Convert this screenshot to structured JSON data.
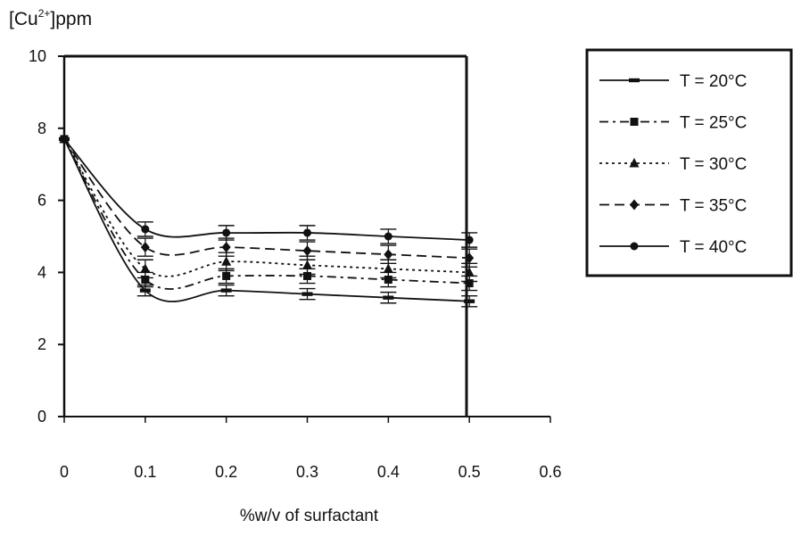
{
  "chart_data": {
    "type": "line",
    "ylabel_main": "[Cu",
    "ylabel_sup": "2+",
    "ylabel_tail": "]ppm",
    "xlabel": "%w/v of surfactant",
    "xlim": [
      0,
      0.6
    ],
    "ylim": [
      0,
      10
    ],
    "xticks": [
      "0",
      "0.1",
      "0.2",
      "0.3",
      "0.4",
      "0.5",
      "0.6"
    ],
    "xtick_values": [
      0,
      0.1,
      0.2,
      0.3,
      0.4,
      0.5,
      0.6
    ],
    "yticks": [
      "0",
      "2",
      "4",
      "6",
      "8",
      "10"
    ],
    "ytick_values": [
      0,
      2,
      4,
      6,
      8,
      10
    ],
    "grid": false,
    "legend_position": "right",
    "x": [
      0,
      0.1,
      0.2,
      0.3,
      0.4,
      0.5
    ],
    "series": [
      {
        "name": "T = 20°C",
        "values": [
          7.7,
          3.5,
          3.5,
          3.4,
          3.3,
          3.2
        ],
        "errors": [
          0,
          0.15,
          0.15,
          0.15,
          0.15,
          0.15
        ],
        "marker": "dash",
        "dash": "none"
      },
      {
        "name": "T = 25°C",
        "values": [
          7.7,
          3.8,
          3.9,
          3.9,
          3.8,
          3.7
        ],
        "errors": [
          0,
          0.2,
          0.2,
          0.2,
          0.2,
          0.2
        ],
        "marker": "square",
        "dash": "dashdot"
      },
      {
        "name": "T = 30°C",
        "values": [
          7.7,
          4.1,
          4.3,
          4.2,
          4.1,
          4.0
        ],
        "errors": [
          0,
          0.25,
          0.25,
          0.25,
          0.25,
          0.25
        ],
        "marker": "triangle",
        "dash": "dotted"
      },
      {
        "name": "T = 35°C",
        "values": [
          7.7,
          4.7,
          4.7,
          4.6,
          4.5,
          4.4
        ],
        "errors": [
          0,
          0.25,
          0.25,
          0.25,
          0.25,
          0.25
        ],
        "marker": "diamond",
        "dash": "dashed"
      },
      {
        "name": "T = 40°C",
        "values": [
          7.7,
          5.2,
          5.1,
          5.1,
          5.0,
          4.9
        ],
        "errors": [
          0,
          0.2,
          0.2,
          0.2,
          0.2,
          0.2
        ],
        "marker": "circle",
        "dash": "none"
      }
    ]
  }
}
